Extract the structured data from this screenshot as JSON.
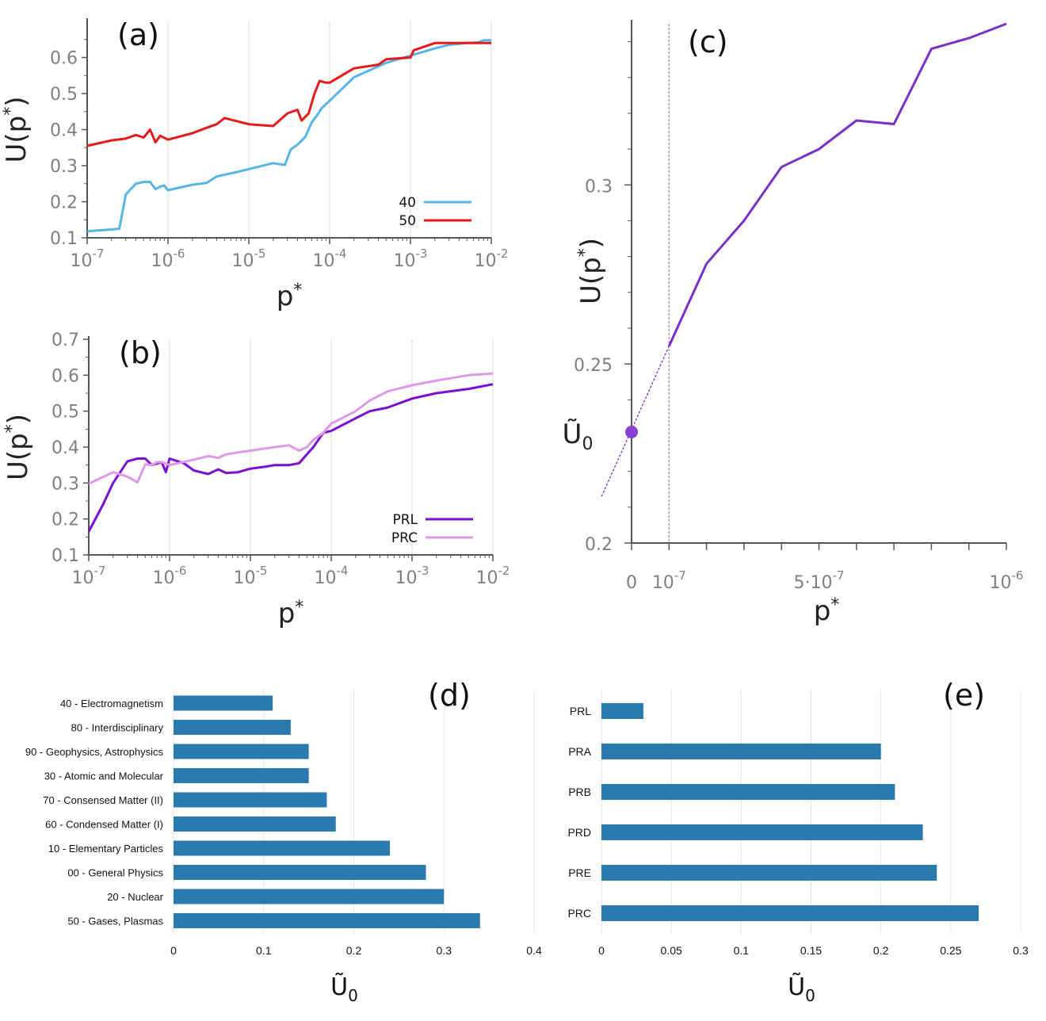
{
  "chart_data": [
    {
      "panel": "a",
      "type": "line",
      "label": "(a)",
      "xscale": "log",
      "xlim": [
        1e-07,
        0.01
      ],
      "ylim": [
        0.1,
        0.7
      ],
      "yticks": [
        "0.1",
        "0.2",
        "0.3",
        "0.4",
        "0.5",
        "0.6"
      ],
      "xticks": [
        "10^-7",
        "10^-6",
        "10^-5",
        "10^-4",
        "10^-3",
        "10^-2"
      ],
      "xlabel": "p*",
      "ylabel": "U(p*)",
      "legend_position": "bottom-right",
      "series": [
        {
          "name": "40",
          "color": "#56b4e9",
          "x": [
            1e-07,
            2.5e-07,
            3e-07,
            4e-07,
            5e-07,
            6e-07,
            7e-07,
            8e-07,
            9e-07,
            1e-06,
            2e-06,
            3e-06,
            4e-06,
            7e-06,
            1.2e-05,
            2e-05,
            2.8e-05,
            3.3e-05,
            4e-05,
            5e-05,
            6e-05,
            7e-05,
            8e-05,
            0.0001,
            0.0002,
            0.0005,
            0.001,
            0.002,
            0.003,
            0.005,
            0.007,
            0.008,
            0.01
          ],
          "y": [
            0.118,
            0.125,
            0.22,
            0.25,
            0.255,
            0.255,
            0.235,
            0.242,
            0.245,
            0.232,
            0.247,
            0.252,
            0.27,
            0.282,
            0.295,
            0.307,
            0.302,
            0.345,
            0.358,
            0.38,
            0.42,
            0.44,
            0.46,
            0.48,
            0.545,
            0.585,
            0.605,
            0.625,
            0.635,
            0.64,
            0.642,
            0.648,
            0.648
          ]
        },
        {
          "name": "50",
          "color": "#e8191a",
          "x": [
            1e-07,
            2e-07,
            3e-07,
            4e-07,
            5e-07,
            6e-07,
            7e-07,
            8e-07,
            1e-06,
            2e-06,
            3e-06,
            4e-06,
            5e-06,
            1e-05,
            2e-05,
            3e-05,
            4e-05,
            4.5e-05,
            5.5e-05,
            6.5e-05,
            7.5e-05,
            9e-05,
            0.0001,
            0.0002,
            0.0004,
            0.0005,
            0.001,
            0.0011,
            0.002,
            0.003,
            0.005,
            0.007,
            0.01
          ],
          "y": [
            0.355,
            0.37,
            0.375,
            0.385,
            0.378,
            0.4,
            0.365,
            0.383,
            0.372,
            0.39,
            0.405,
            0.415,
            0.432,
            0.415,
            0.41,
            0.445,
            0.455,
            0.425,
            0.445,
            0.5,
            0.535,
            0.53,
            0.53,
            0.57,
            0.58,
            0.595,
            0.6,
            0.62,
            0.64,
            0.64,
            0.64,
            0.64,
            0.64
          ]
        }
      ]
    },
    {
      "panel": "b",
      "type": "line",
      "label": "(b)",
      "xscale": "log",
      "xlim": [
        1e-07,
        0.01
      ],
      "ylim": [
        0.1,
        0.7
      ],
      "yticks": [
        "0.1",
        "0.2",
        "0.3",
        "0.4",
        "0.5",
        "0.6",
        "0.7"
      ],
      "xticks": [
        "10^-7",
        "10^-6",
        "10^-5",
        "10^-4",
        "10^-3",
        "10^-2"
      ],
      "xlabel": "p*",
      "ylabel": "U(p*)",
      "legend_position": "bottom-right",
      "series": [
        {
          "name": "PRL",
          "color": "#7a0ed6",
          "x": [
            1e-07,
            1.5e-07,
            2e-07,
            3e-07,
            4e-07,
            5e-07,
            6e-07,
            8e-07,
            9e-07,
            1e-06,
            1.5e-06,
            2e-06,
            3e-06,
            4e-06,
            5e-06,
            7e-06,
            1e-05,
            1.5e-05,
            2e-05,
            3e-05,
            4e-05,
            6e-05,
            8e-05,
            0.0001,
            0.0002,
            0.0003,
            0.0005,
            0.001,
            0.002,
            0.005,
            0.01
          ],
          "y": [
            0.165,
            0.24,
            0.3,
            0.36,
            0.368,
            0.368,
            0.35,
            0.358,
            0.33,
            0.368,
            0.355,
            0.335,
            0.325,
            0.338,
            0.328,
            0.33,
            0.34,
            0.345,
            0.35,
            0.35,
            0.355,
            0.4,
            0.44,
            0.445,
            0.48,
            0.5,
            0.51,
            0.535,
            0.55,
            0.562,
            0.575
          ]
        },
        {
          "name": "PRC",
          "color": "#dd99e8",
          "x": [
            1e-07,
            2e-07,
            3e-07,
            4e-07,
            5e-07,
            6e-07,
            7e-07,
            8e-07,
            1e-06,
            2e-06,
            3e-06,
            4e-06,
            5e-06,
            7e-06,
            1e-05,
            2e-05,
            3e-05,
            4e-05,
            5e-05,
            6e-05,
            8e-05,
            0.0001,
            0.0002,
            0.0003,
            0.0005,
            0.001,
            0.002,
            0.005,
            0.01
          ],
          "y": [
            0.298,
            0.33,
            0.318,
            0.302,
            0.352,
            0.35,
            0.358,
            0.358,
            0.35,
            0.365,
            0.375,
            0.37,
            0.38,
            0.385,
            0.39,
            0.4,
            0.405,
            0.39,
            0.4,
            0.42,
            0.44,
            0.465,
            0.5,
            0.53,
            0.555,
            0.572,
            0.585,
            0.6,
            0.605
          ]
        }
      ]
    },
    {
      "panel": "c",
      "type": "line",
      "label": "(c)",
      "xlim": [
        0,
        1e-06
      ],
      "ylim": [
        0.2,
        0.345
      ],
      "yticks": [
        "0.2",
        "0.25",
        "0.3"
      ],
      "xticks": [
        "0",
        "10^-7",
        "5·10^-7",
        "10^-6"
      ],
      "xlabel": "p*",
      "ylabel": "U(p*)",
      "intercept_label": "Ũ0",
      "intercept_value": 0.231,
      "vline_x": 1e-07,
      "color": "#7b2fc9",
      "x": [
        1e-07,
        2e-07,
        3e-07,
        4e-07,
        5e-07,
        6e-07,
        7e-07,
        8e-07,
        9e-07,
        1e-06
      ],
      "y": [
        0.255,
        0.278,
        0.29,
        0.305,
        0.31,
        0.318,
        0.317,
        0.338,
        0.341,
        0.345
      ],
      "extrapolation_x": [
        -8e-08,
        1e-07
      ],
      "extrapolation_y": [
        0.213,
        0.255
      ]
    },
    {
      "panel": "d",
      "type": "bar",
      "label": "(d)",
      "orientation": "horizontal",
      "color": "#2a7aad",
      "xlim": [
        0,
        0.4
      ],
      "xticks": [
        "0",
        "0.1",
        "0.2",
        "0.3",
        "0.4"
      ],
      "xlabel": "Ũ0",
      "categories": [
        "40 - Electromagnetism",
        "80 - Interdisciplinary",
        "90 - Geophysics, Astrophysics",
        "30 - Atomic and Molecular",
        "70 - Consensed Matter (II)",
        "60 - Condensed Matter (I)",
        "10 - Elementary Particles",
        "00 - General Physics",
        "20 - Nuclear",
        "50 - Gases, Plasmas"
      ],
      "values": [
        0.11,
        0.13,
        0.15,
        0.15,
        0.17,
        0.18,
        0.24,
        0.28,
        0.3,
        0.34
      ]
    },
    {
      "panel": "e",
      "type": "bar",
      "label": "(e)",
      "orientation": "horizontal",
      "color": "#2a7aad",
      "xlim": [
        0,
        0.3
      ],
      "xticks": [
        "0",
        "0.05",
        "0.1",
        "0.15",
        "0.2",
        "0.25",
        "0.3"
      ],
      "xlabel": "Ũ0",
      "categories": [
        "PRL",
        "PRA",
        "PRB",
        "PRD",
        "PRE",
        "PRC"
      ],
      "values": [
        0.03,
        0.2,
        0.21,
        0.23,
        0.24,
        0.27
      ]
    }
  ]
}
